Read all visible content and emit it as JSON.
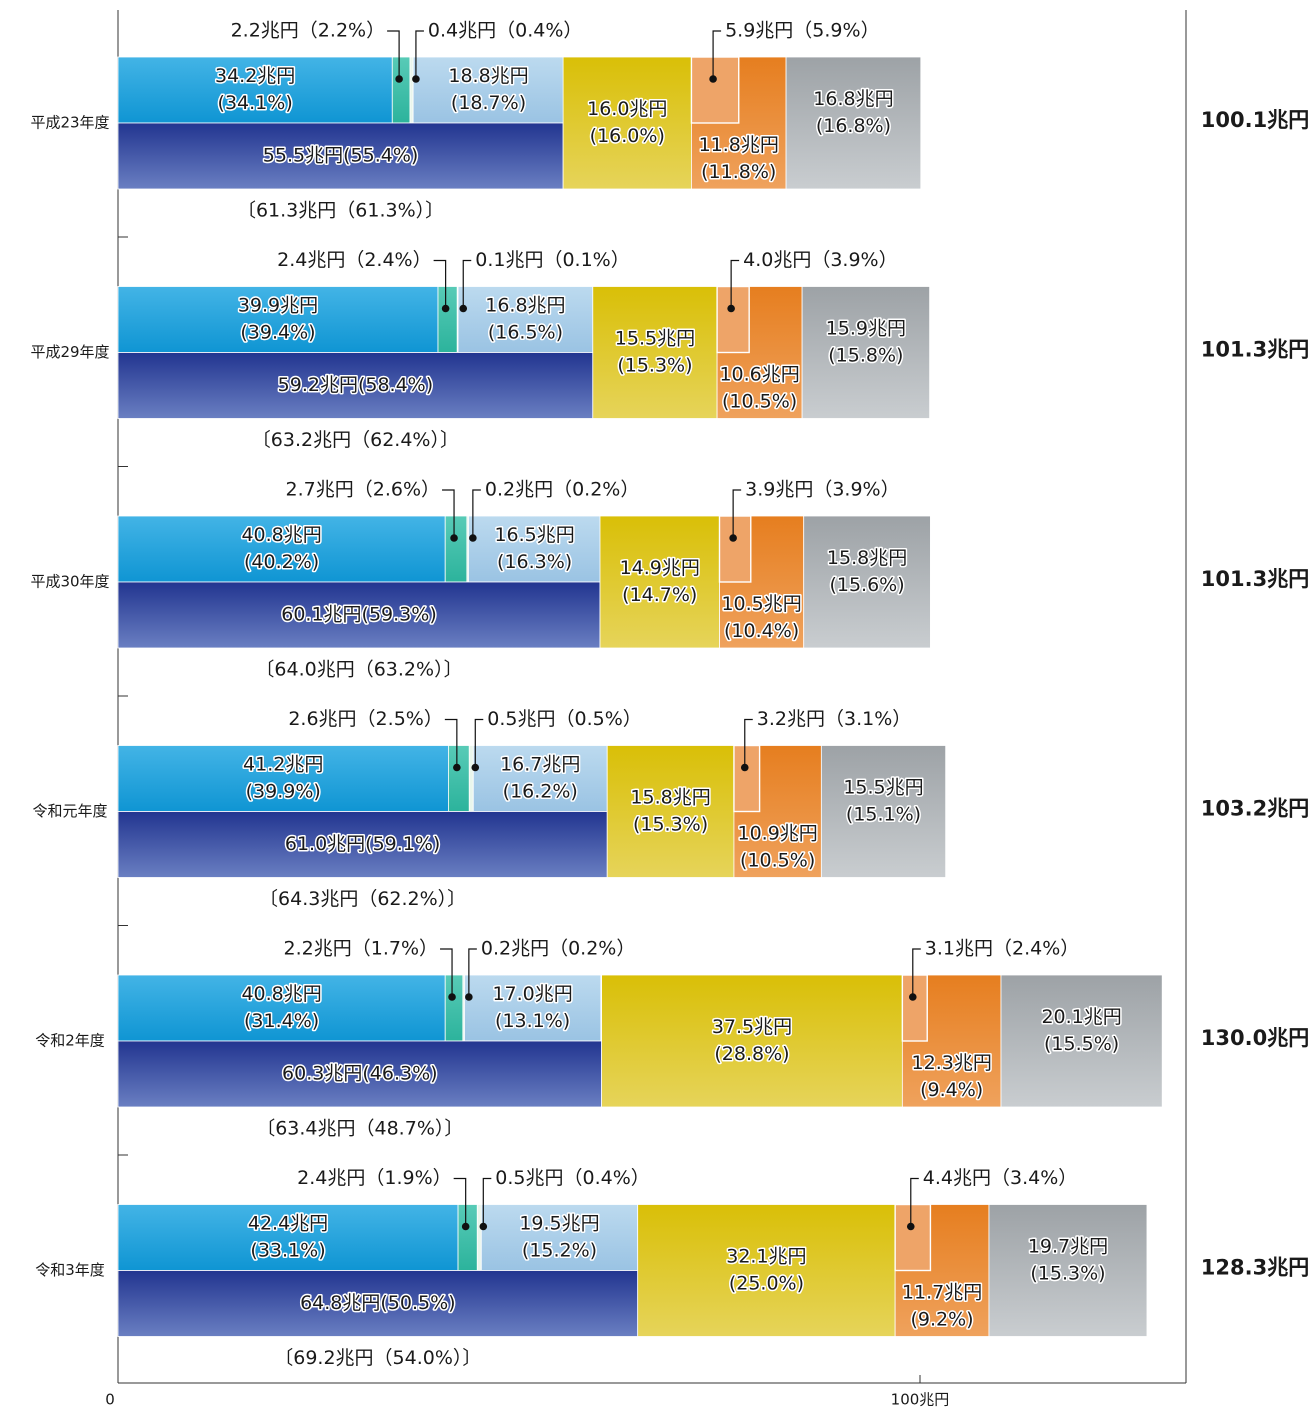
{
  "chart_data": {
    "type": "bar",
    "orientation": "horizontal",
    "stacked": true,
    "x_tick_labels": [
      "0",
      "100兆円"
    ],
    "xlim": [
      0,
      100
    ],
    "colors": {
      "top_segments": [
        "#1fa3dd",
        "#3cbfa9",
        "#eaf6ec",
        "#a9cde8"
      ],
      "bottom_segment": "#2f4396",
      "shared_segments": [
        "#dcc40f",
        "#e8883a",
        "#a9adb0"
      ],
      "inset_segment": "#eea468",
      "total_label": "#1a1a1a"
    },
    "years": [
      {
        "label": "平成23年度",
        "total": 100.1,
        "total_label": "100.1兆円",
        "top": [
          {
            "value": 34.2,
            "label": "34.2兆円\n(34.1%)"
          },
          {
            "value": 2.2,
            "label": "2.2兆円（2.2%）"
          },
          {
            "value": 0.4,
            "label": "0.4兆円（0.4%）"
          },
          {
            "value": 18.8,
            "label": "18.8兆円\n(18.7%)"
          }
        ],
        "bottom": {
          "value": 55.5,
          "label": "55.5兆円(55.4%)"
        },
        "bracket_label": "〔61.3兆円（61.3%）〕",
        "shared": [
          {
            "value": 16.0,
            "label": "16.0兆円\n(16.0%)"
          },
          {
            "value": 11.8,
            "label": "11.8兆円\n(11.8%)"
          },
          {
            "value": 16.8,
            "label": "16.8兆円\n(16.8%)"
          }
        ],
        "inset": {
          "value": 5.9,
          "label": "5.9兆円（5.9%）"
        }
      },
      {
        "label": "平成29年度",
        "total": 101.3,
        "total_label": "101.3兆円",
        "top": [
          {
            "value": 39.9,
            "label": "39.9兆円\n(39.4%)"
          },
          {
            "value": 2.4,
            "label": "2.4兆円（2.4%）"
          },
          {
            "value": 0.1,
            "label": "0.1兆円（0.1%）"
          },
          {
            "value": 16.8,
            "label": "16.8兆円\n(16.5%)"
          }
        ],
        "bottom": {
          "value": 59.2,
          "label": "59.2兆円(58.4%)"
        },
        "bracket_label": "〔63.2兆円（62.4%）〕",
        "shared": [
          {
            "value": 15.5,
            "label": "15.5兆円\n(15.3%)"
          },
          {
            "value": 10.6,
            "label": "10.6兆円\n(10.5%)"
          },
          {
            "value": 15.9,
            "label": "15.9兆円\n(15.8%)"
          }
        ],
        "inset": {
          "value": 4.0,
          "label": "4.0兆円（3.9%）"
        }
      },
      {
        "label": "平成30年度",
        "total": 101.3,
        "total_label": "101.3兆円",
        "top": [
          {
            "value": 40.8,
            "label": "40.8兆円\n(40.2%)"
          },
          {
            "value": 2.7,
            "label": "2.7兆円（2.6%）"
          },
          {
            "value": 0.2,
            "label": "0.2兆円（0.2%）"
          },
          {
            "value": 16.5,
            "label": "16.5兆円\n(16.3%)"
          }
        ],
        "bottom": {
          "value": 60.1,
          "label": "60.1兆円(59.3%)"
        },
        "bracket_label": "〔64.0兆円（63.2%）〕",
        "shared": [
          {
            "value": 14.9,
            "label": "14.9兆円\n(14.7%)"
          },
          {
            "value": 10.5,
            "label": "10.5兆円\n(10.4%)"
          },
          {
            "value": 15.8,
            "label": "15.8兆円\n(15.6%)"
          }
        ],
        "inset": {
          "value": 3.9,
          "label": "3.9兆円（3.9%）"
        }
      },
      {
        "label": "令和元年度",
        "total": 103.2,
        "total_label": "103.2兆円",
        "top": [
          {
            "value": 41.2,
            "label": "41.2兆円\n(39.9%)"
          },
          {
            "value": 2.6,
            "label": "2.6兆円（2.5%）"
          },
          {
            "value": 0.5,
            "label": "0.5兆円（0.5%）"
          },
          {
            "value": 16.7,
            "label": "16.7兆円\n(16.2%)"
          }
        ],
        "bottom": {
          "value": 61.0,
          "label": "61.0兆円(59.1%)"
        },
        "bracket_label": "〔64.3兆円（62.2%）〕",
        "shared": [
          {
            "value": 15.8,
            "label": "15.8兆円\n(15.3%)"
          },
          {
            "value": 10.9,
            "label": "10.9兆円\n(10.5%)"
          },
          {
            "value": 15.5,
            "label": "15.5兆円\n(15.1%)"
          }
        ],
        "inset": {
          "value": 3.2,
          "label": "3.2兆円（3.1%）"
        }
      },
      {
        "label": "令和2年度",
        "total": 130.0,
        "total_label": "130.0兆円",
        "top": [
          {
            "value": 40.8,
            "label": "40.8兆円\n(31.4%)"
          },
          {
            "value": 2.2,
            "label": "2.2兆円（1.7%）"
          },
          {
            "value": 0.2,
            "label": "0.2兆円（0.2%）"
          },
          {
            "value": 17.0,
            "label": "17.0兆円\n(13.1%)"
          }
        ],
        "bottom": {
          "value": 60.3,
          "label": "60.3兆円(46.3%)"
        },
        "bracket_label": "〔63.4兆円（48.7%）〕",
        "shared": [
          {
            "value": 37.5,
            "label": "37.5兆円\n(28.8%)"
          },
          {
            "value": 12.3,
            "label": "12.3兆円\n(9.4%)"
          },
          {
            "value": 20.1,
            "label": "20.1兆円\n(15.5%)"
          }
        ],
        "inset": {
          "value": 3.1,
          "label": "3.1兆円（2.4%）"
        }
      },
      {
        "label": "令和3年度",
        "total": 128.3,
        "total_label": "128.3兆円",
        "top": [
          {
            "value": 42.4,
            "label": "42.4兆円\n(33.1%)"
          },
          {
            "value": 2.4,
            "label": "2.4兆円（1.9%）"
          },
          {
            "value": 0.5,
            "label": "0.5兆円（0.4%）"
          },
          {
            "value": 19.5,
            "label": "19.5兆円\n(15.2%)"
          }
        ],
        "bottom": {
          "value": 64.8,
          "label": "64.8兆円(50.5%)"
        },
        "bracket_label": "〔69.2兆円（54.0%）〕",
        "shared": [
          {
            "value": 32.1,
            "label": "32.1兆円\n(25.0%)"
          },
          {
            "value": 11.7,
            "label": "11.7兆円\n(9.2%)"
          },
          {
            "value": 19.7,
            "label": "19.7兆円\n(15.3%)"
          }
        ],
        "inset": {
          "value": 4.4,
          "label": "4.4兆円（3.4%）"
        }
      }
    ]
  }
}
